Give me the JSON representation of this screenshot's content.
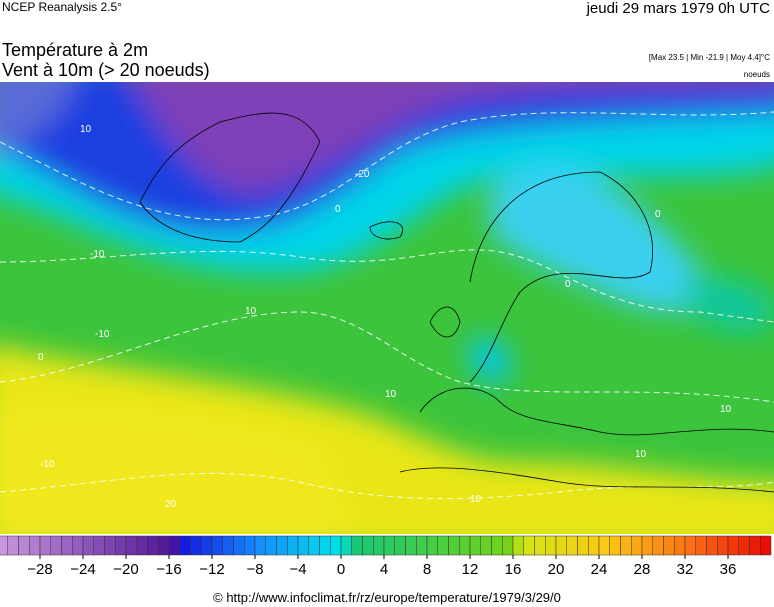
{
  "header": {
    "source": "NCEP Reanalysis 2.5°",
    "date": "jeudi 29 mars 1979 0h UTC",
    "title": "Température à 2m",
    "subtitle": "Vent à 10m (> 20 noeuds)",
    "stats": "[Max 23.5 | Min -21.9 | Moy 4.4]°C",
    "wind_unit": "noeuds"
  },
  "map": {
    "contour_labels": [
      "10",
      "-10",
      "-20",
      "0",
      "10",
      "0",
      "-10",
      "10",
      "0",
      "10",
      "-10",
      "0",
      "10",
      "10",
      "20"
    ]
  },
  "colorbar": {
    "range": [
      -32,
      40
    ],
    "step": 1,
    "ticks": [
      {
        "value": -28,
        "label": "−28"
      },
      {
        "value": -24,
        "label": "−24"
      },
      {
        "value": -20,
        "label": "−20"
      },
      {
        "value": -16,
        "label": "−16"
      },
      {
        "value": -12,
        "label": "−12"
      },
      {
        "value": -8,
        "label": "−8"
      },
      {
        "value": -4,
        "label": "−4"
      },
      0,
      4,
      8,
      12,
      16,
      20,
      24,
      28,
      32,
      36
    ]
  },
  "footer": "© http://www.infoclimat.fr/rz/europe/temperature/1979/3/29/0"
}
